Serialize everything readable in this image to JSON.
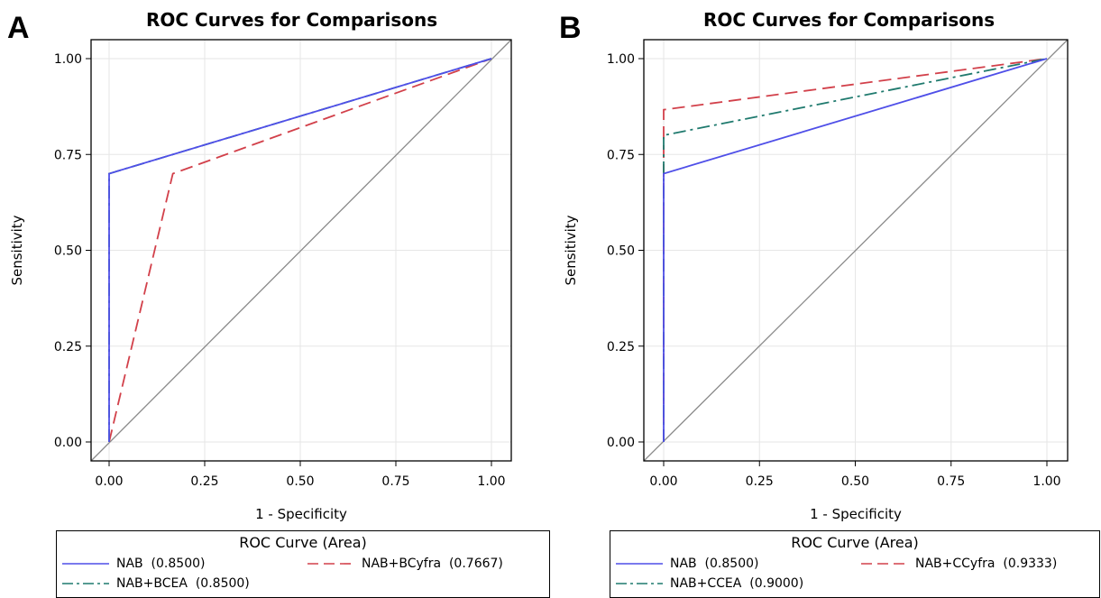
{
  "panels": [
    {
      "letter": "A",
      "chart_data": {
        "type": "line",
        "title": "ROC Curves for Comparisons",
        "xlabel": "1 - Specificity",
        "ylabel": "Sensitivity",
        "xlim": [
          0,
          1
        ],
        "ylim": [
          0,
          1
        ],
        "xticks": [
          "0.00",
          "0.25",
          "0.50",
          "0.75",
          "1.00"
        ],
        "yticks": [
          "0.00",
          "0.25",
          "0.50",
          "0.75",
          "1.00"
        ],
        "grid": true,
        "legend_title": "ROC Curve (Area)",
        "legend_position": "bottom",
        "series": [
          {
            "name": "NAB",
            "legend_label": "NAB  (0.8500)",
            "color": "#4f4fe8",
            "dash": "solid",
            "x": [
              0,
              0,
              1
            ],
            "y": [
              0,
              0.7,
              1
            ]
          },
          {
            "name": "NAB+BCyfra",
            "legend_label": "NAB+BCyfra  (0.7667)",
            "color": "#d2404a",
            "dash": "long-dash",
            "x": [
              0,
              0.1667,
              1
            ],
            "y": [
              0,
              0.7,
              1
            ]
          },
          {
            "name": "NAB+BCEA",
            "legend_label": "NAB+BCEA  (0.8500)",
            "color": "#1f7a6e",
            "dash": "dash-dot",
            "x": [
              0,
              0,
              1
            ],
            "y": [
              0,
              0.7,
              1
            ]
          }
        ]
      }
    },
    {
      "letter": "B",
      "chart_data": {
        "type": "line",
        "title": "ROC Curves for Comparisons",
        "xlabel": "1 - Specificity",
        "ylabel": "Sensitivity",
        "xlim": [
          0,
          1
        ],
        "ylim": [
          0,
          1
        ],
        "xticks": [
          "0.00",
          "0.25",
          "0.50",
          "0.75",
          "1.00"
        ],
        "yticks": [
          "0.00",
          "0.25",
          "0.50",
          "0.75",
          "1.00"
        ],
        "grid": true,
        "legend_title": "ROC Curve (Area)",
        "legend_position": "bottom",
        "series": [
          {
            "name": "NAB",
            "legend_label": "NAB  (0.8500)",
            "color": "#4f4fe8",
            "dash": "solid",
            "x": [
              0,
              0,
              1
            ],
            "y": [
              0,
              0.7,
              1
            ]
          },
          {
            "name": "NAB+CCyfra",
            "legend_label": "NAB+CCyfra  (0.9333)",
            "color": "#d2404a",
            "dash": "long-dash",
            "x": [
              0,
              0,
              1
            ],
            "y": [
              0,
              0.8667,
              1
            ]
          },
          {
            "name": "NAB+CCEA",
            "legend_label": "NAB+CCEA  (0.9000)",
            "color": "#1f7a6e",
            "dash": "dash-dot",
            "x": [
              0,
              0,
              1
            ],
            "y": [
              0,
              0.8,
              1
            ]
          }
        ]
      }
    }
  ]
}
